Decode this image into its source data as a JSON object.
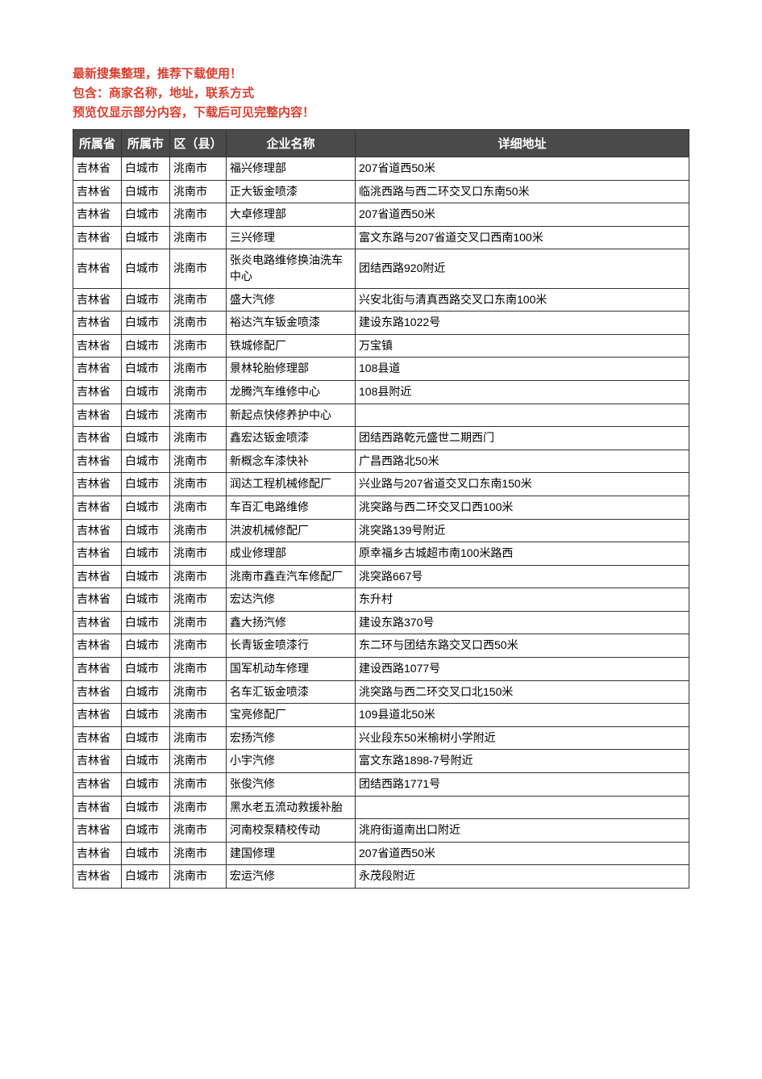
{
  "notice": {
    "line1": "最新搜集整理，推荐下载使用！",
    "line2": "包含：商家名称，地址，联系方式",
    "line3": "预览仅显示部分内容，下载后可见完整内容！",
    "color": "#d94030"
  },
  "table": {
    "header_bg": "#4a4a4a",
    "header_fg": "#ffffff",
    "border_color": "#333333",
    "columns": [
      "所属省",
      "所属市",
      "区（县）",
      "企业名称",
      "详细地址"
    ],
    "rows": [
      [
        "吉林省",
        "白城市",
        "洮南市",
        "福兴修理部",
        "207省道西50米"
      ],
      [
        "吉林省",
        "白城市",
        "洮南市",
        "正大钣金喷漆",
        "临洮西路与西二环交叉口东南50米"
      ],
      [
        "吉林省",
        "白城市",
        "洮南市",
        "大卓修理部",
        "207省道西50米"
      ],
      [
        "吉林省",
        "白城市",
        "洮南市",
        "三兴修理",
        "富文东路与207省道交叉口西南100米"
      ],
      [
        "吉林省",
        "白城市",
        "洮南市",
        "张炎电路维修换油洗车中心",
        "团结西路920附近"
      ],
      [
        "吉林省",
        "白城市",
        "洮南市",
        "盛大汽修",
        "兴安北街与清真西路交叉口东南100米"
      ],
      [
        "吉林省",
        "白城市",
        "洮南市",
        "裕达汽车钣金喷漆",
        "建设东路1022号"
      ],
      [
        "吉林省",
        "白城市",
        "洮南市",
        "铁城修配厂",
        "万宝镇"
      ],
      [
        "吉林省",
        "白城市",
        "洮南市",
        "景林轮胎修理部",
        "108县道"
      ],
      [
        "吉林省",
        "白城市",
        "洮南市",
        "龙腾汽车维修中心",
        "108县附近"
      ],
      [
        "吉林省",
        "白城市",
        "洮南市",
        "新起点快修养护中心",
        ""
      ],
      [
        "吉林省",
        "白城市",
        "洮南市",
        "鑫宏达钣金喷漆",
        "团结西路乾元盛世二期西门"
      ],
      [
        "吉林省",
        "白城市",
        "洮南市",
        "新概念车漆快补",
        "广昌西路北50米"
      ],
      [
        "吉林省",
        "白城市",
        "洮南市",
        "润达工程机械修配厂",
        "兴业路与207省道交叉口东南150米"
      ],
      [
        "吉林省",
        "白城市",
        "洮南市",
        "车百汇电路维修",
        "洮突路与西二环交叉口西100米"
      ],
      [
        "吉林省",
        "白城市",
        "洮南市",
        "洪波机械修配厂",
        "洮突路139号附近"
      ],
      [
        "吉林省",
        "白城市",
        "洮南市",
        "成业修理部",
        "原幸福乡古城超市南100米路西"
      ],
      [
        "吉林省",
        "白城市",
        "洮南市",
        "洮南市鑫垚汽车修配厂",
        "洮突路667号"
      ],
      [
        "吉林省",
        "白城市",
        "洮南市",
        "宏达汽修",
        "东升村"
      ],
      [
        "吉林省",
        "白城市",
        "洮南市",
        "鑫大扬汽修",
        "建设东路370号"
      ],
      [
        "吉林省",
        "白城市",
        "洮南市",
        "长青钣金喷漆行",
        "东二环与团结东路交叉口西50米"
      ],
      [
        "吉林省",
        "白城市",
        "洮南市",
        "国军机动车修理",
        "建设西路1077号"
      ],
      [
        "吉林省",
        "白城市",
        "洮南市",
        "名车汇钣金喷漆",
        "洮突路与西二环交叉口北150米"
      ],
      [
        "吉林省",
        "白城市",
        "洮南市",
        "宝亮修配厂",
        "109县道北50米"
      ],
      [
        "吉林省",
        "白城市",
        "洮南市",
        "宏扬汽修",
        "兴业段东50米榆树小学附近"
      ],
      [
        "吉林省",
        "白城市",
        "洮南市",
        "小宇汽修",
        "富文东路1898-7号附近"
      ],
      [
        "吉林省",
        "白城市",
        "洮南市",
        "张俊汽修",
        "团结西路1771号"
      ],
      [
        "吉林省",
        "白城市",
        "洮南市",
        "黑水老五流动救援补胎",
        ""
      ],
      [
        "吉林省",
        "白城市",
        "洮南市",
        "河南校泵精校传动",
        "洮府街道南出口附近"
      ],
      [
        "吉林省",
        "白城市",
        "洮南市",
        "建国修理",
        "207省道西50米"
      ],
      [
        "吉林省",
        "白城市",
        "洮南市",
        "宏运汽修",
        "永茂段附近"
      ]
    ]
  }
}
